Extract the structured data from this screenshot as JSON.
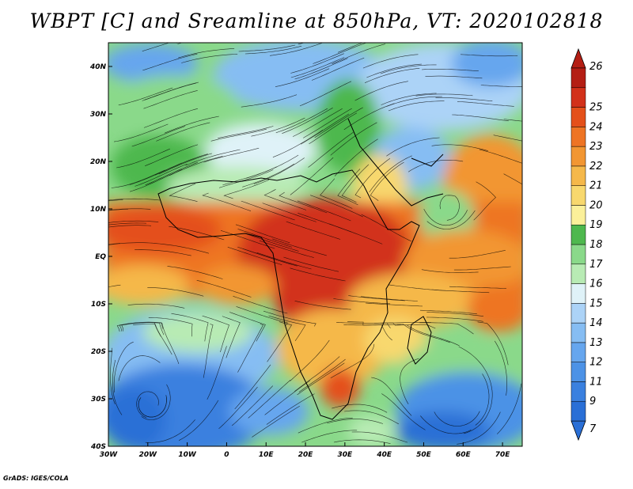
{
  "title": "WBPT [C] and Sreamline at 850hPa, VT: 2020102818",
  "footer": "GrADS: IGES/COLA",
  "map": {
    "lon_ticks": [
      "30W",
      "20W",
      "10W",
      "0",
      "10E",
      "20E",
      "30E",
      "40E",
      "50E",
      "60E",
      "70E"
    ],
    "lat_ticks": [
      "40N",
      "30N",
      "20N",
      "10N",
      "EQ",
      "10S",
      "20S",
      "30S",
      "40S"
    ],
    "lon_range": [
      -30,
      75
    ],
    "lat_range": [
      -40,
      45
    ]
  },
  "colorbar": {
    "labels": [
      "7",
      "9",
      "11",
      "12",
      "13",
      "14",
      "15",
      "16",
      "17",
      "18",
      "19",
      "20",
      "21",
      "22",
      "23",
      "24",
      "25",
      "26"
    ],
    "colors": [
      "#2a6fd6",
      "#3a80df",
      "#4c92e6",
      "#66a6ee",
      "#86bdf3",
      "#acd3f7",
      "#dff2f8",
      "#b8ebb4",
      "#8ad98a",
      "#4eb84e",
      "#fbf09a",
      "#f8d86e",
      "#f5b84a",
      "#f29632",
      "#ee7424",
      "#e4501a",
      "#d2311a",
      "#b41e14"
    ]
  }
}
